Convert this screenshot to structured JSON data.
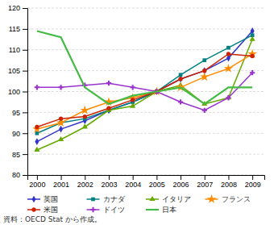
{
  "chart_data": {
    "type": "line",
    "x": [
      2000,
      2001,
      2002,
      2003,
      2004,
      2005,
      2006,
      2007,
      2008,
      2009
    ],
    "xlim": [
      1999.6,
      2009.5
    ],
    "xticks": [
      2000,
      2001,
      2002,
      2003,
      2004,
      2005,
      2006,
      2007,
      2008,
      2009
    ],
    "ylim": [
      80,
      120
    ],
    "yticks": [
      80,
      85,
      90,
      95,
      100,
      105,
      110,
      115,
      120
    ],
    "grid": true,
    "legend": "bottom",
    "annotations": [
      "資料：OECD Stat から作成。"
    ],
    "series": [
      {
        "name": "英国",
        "color": "#3333cc",
        "marker": "diamond",
        "values": [
          88,
          91,
          93,
          95.5,
          97.5,
          100,
          103,
          105,
          108,
          114.5
        ]
      },
      {
        "name": "カナダ",
        "color": "#008080",
        "marker": "square",
        "values": [
          90,
          92.5,
          93.5,
          95.5,
          97.5,
          100,
          104,
          107.5,
          110.5,
          113.5
        ]
      },
      {
        "name": "イタリア",
        "color": "#66aa00",
        "marker": "triangle",
        "values": [
          86,
          88.5,
          91.5,
          95.5,
          96.5,
          100,
          101.5,
          97,
          98.5,
          112.5
        ]
      },
      {
        "name": "フランス",
        "color": "#FF8C00",
        "marker": "star",
        "values": [
          91,
          92.5,
          95.5,
          97.5,
          98.5,
          100,
          101,
          103.5,
          105.5,
          109
        ]
      },
      {
        "name": "米国",
        "color": "#cc2200",
        "marker": "circle",
        "values": [
          91.5,
          93.5,
          94,
          96,
          98,
          100,
          103,
          105,
          109,
          108.5
        ]
      },
      {
        "name": "ドイツ",
        "color": "#9933cc",
        "marker": "plus",
        "values": [
          101,
          101,
          101.5,
          102,
          101,
          100,
          97.5,
          95.5,
          98.5,
          104.5
        ]
      },
      {
        "name": "日本",
        "color": "#44bb44",
        "marker": "none",
        "values": [
          114.5,
          113,
          101,
          97,
          99,
          100,
          101,
          97,
          101,
          101
        ]
      }
    ]
  }
}
